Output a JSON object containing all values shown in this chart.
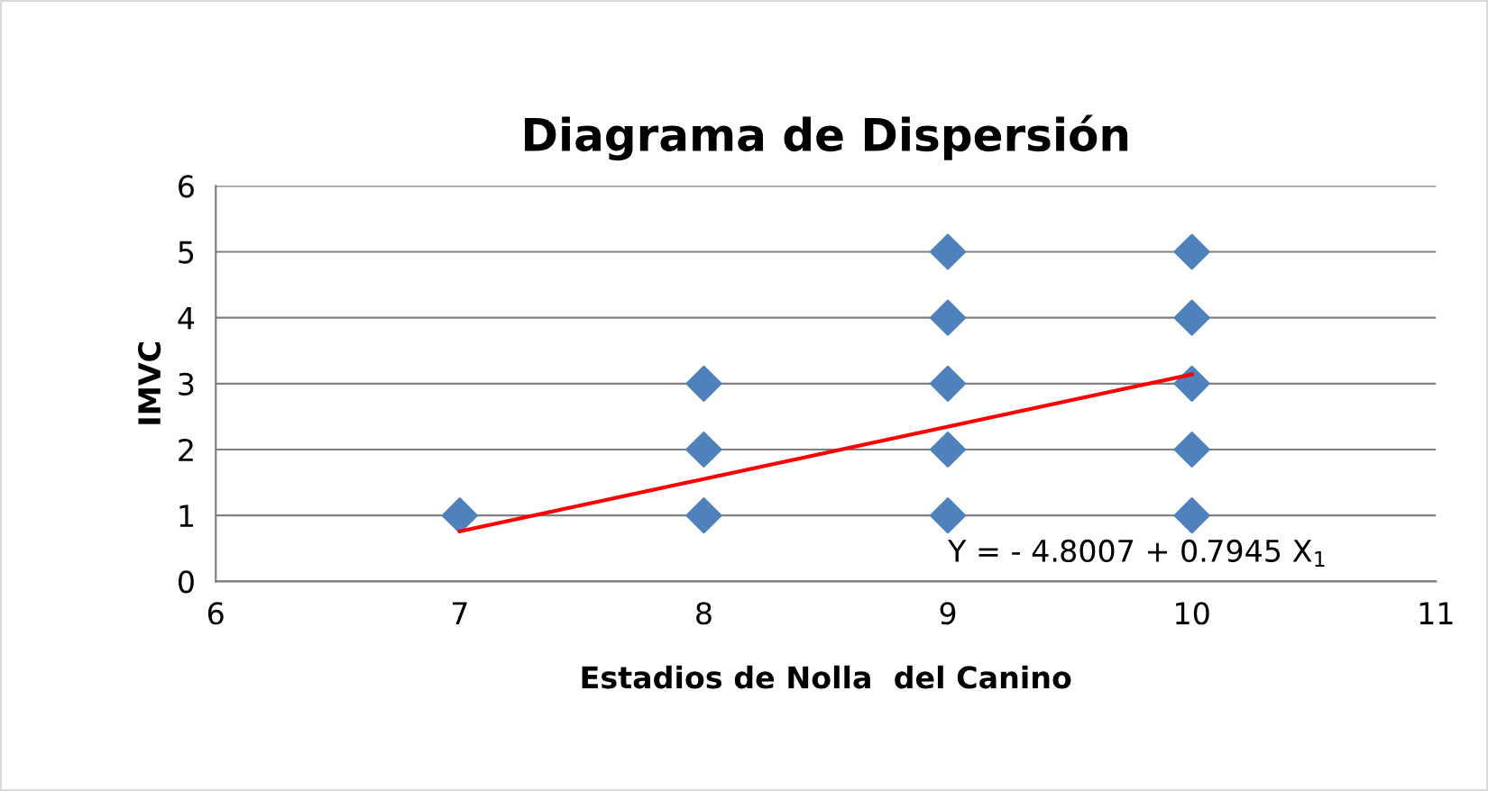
{
  "chart_data": {
    "type": "scatter",
    "title": "Diagrama de Dispersión",
    "xlabel": "Estadios de Nolla  del Canino",
    "ylabel": "IMVC",
    "series": [
      {
        "color": "#4f81bd",
        "marker": "diamond",
        "x": [
          7,
          8,
          8,
          8,
          9,
          9,
          9,
          9,
          9,
          10,
          10,
          10,
          10,
          10
        ],
        "values": [
          1,
          1,
          2,
          3,
          1,
          2,
          3,
          4,
          5,
          1,
          2,
          3,
          4,
          5
        ]
      },
      {
        "type": "line",
        "color": "#ff0000",
        "marker": "none",
        "line_style": "solid",
        "x": [
          7,
          10
        ],
        "values": [
          0.76,
          3.14
        ]
      }
    ],
    "annotations": [
      "Y = - 4.8007 + 0.7945 X$_{1}$"
    ],
    "xlim": [
      6,
      11
    ],
    "ylim": [
      0,
      6
    ],
    "xticks": [
      6,
      7,
      8,
      9,
      10,
      11
    ],
    "yticks": [
      0,
      1,
      2,
      3,
      4,
      5,
      6
    ],
    "grid": "y",
    "legend": false
  }
}
